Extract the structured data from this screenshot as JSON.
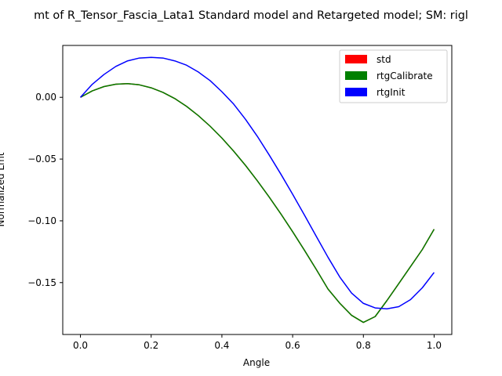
{
  "chart_data": {
    "type": "line",
    "title": "mt of R_Tensor_Fascia_Lata1 Standard model and Retargeted model; SM: rigl",
    "xlabel": "Angle",
    "ylabel": "Normalized Lmt",
    "xlim": [
      -0.05,
      1.05
    ],
    "ylim": [
      -0.192,
      0.042
    ],
    "xticks": [
      0.0,
      0.2,
      0.4,
      0.6,
      0.8,
      1.0
    ],
    "xtick_labels": [
      "0.0",
      "0.2",
      "0.4",
      "0.6",
      "0.8",
      "1.0"
    ],
    "yticks": [
      0.0,
      -0.05,
      -0.1,
      -0.15
    ],
    "ytick_labels": [
      "0.00",
      "−0.05",
      "−0.10",
      "−0.15"
    ],
    "legend_position": "top-right",
    "x": [
      0.0,
      0.0333,
      0.0667,
      0.1,
      0.1333,
      0.1667,
      0.2,
      0.2333,
      0.2667,
      0.3,
      0.3333,
      0.3667,
      0.4,
      0.4333,
      0.4667,
      0.5,
      0.5333,
      0.5667,
      0.6,
      0.6333,
      0.6667,
      0.7,
      0.7333,
      0.7667,
      0.8,
      0.8333,
      0.8667,
      0.9,
      0.9333,
      0.9667,
      1.0
    ],
    "series": [
      {
        "name": "std",
        "color": "#ff0000",
        "values": [
          0.0,
          0.0052,
          0.0087,
          0.0106,
          0.0111,
          0.0101,
          0.0077,
          0.004,
          -0.001,
          -0.0073,
          -0.0148,
          -0.0234,
          -0.033,
          -0.0436,
          -0.0551,
          -0.0675,
          -0.0806,
          -0.0944,
          -0.1088,
          -0.1238,
          -0.1393,
          -0.1552,
          -0.1667,
          -0.1765,
          -0.1822,
          -0.1775,
          -0.1645,
          -0.1508,
          -0.137,
          -0.1232,
          -0.1068
        ]
      },
      {
        "name": "rtgCalibrate",
        "color": "#008000",
        "values": [
          0.0,
          0.0052,
          0.0087,
          0.0106,
          0.0111,
          0.0101,
          0.0077,
          0.004,
          -0.001,
          -0.0073,
          -0.0148,
          -0.0234,
          -0.033,
          -0.0436,
          -0.0551,
          -0.0675,
          -0.0806,
          -0.0944,
          -0.1088,
          -0.1238,
          -0.1393,
          -0.1552,
          -0.1667,
          -0.1765,
          -0.1822,
          -0.1775,
          -0.1645,
          -0.1508,
          -0.137,
          -0.1232,
          -0.1068
        ]
      },
      {
        "name": "rtgInit",
        "color": "#0000ff",
        "values": [
          0.0,
          0.0105,
          0.0185,
          0.025,
          0.0295,
          0.0318,
          0.0323,
          0.0318,
          0.0295,
          0.026,
          0.0205,
          0.0135,
          0.0045,
          -0.0055,
          -0.0178,
          -0.0315,
          -0.0465,
          -0.0622,
          -0.0785,
          -0.0953,
          -0.1125,
          -0.1295,
          -0.1455,
          -0.1585,
          -0.1668,
          -0.1705,
          -0.1712,
          -0.1695,
          -0.1638,
          -0.1542,
          -0.1418
        ]
      }
    ]
  }
}
